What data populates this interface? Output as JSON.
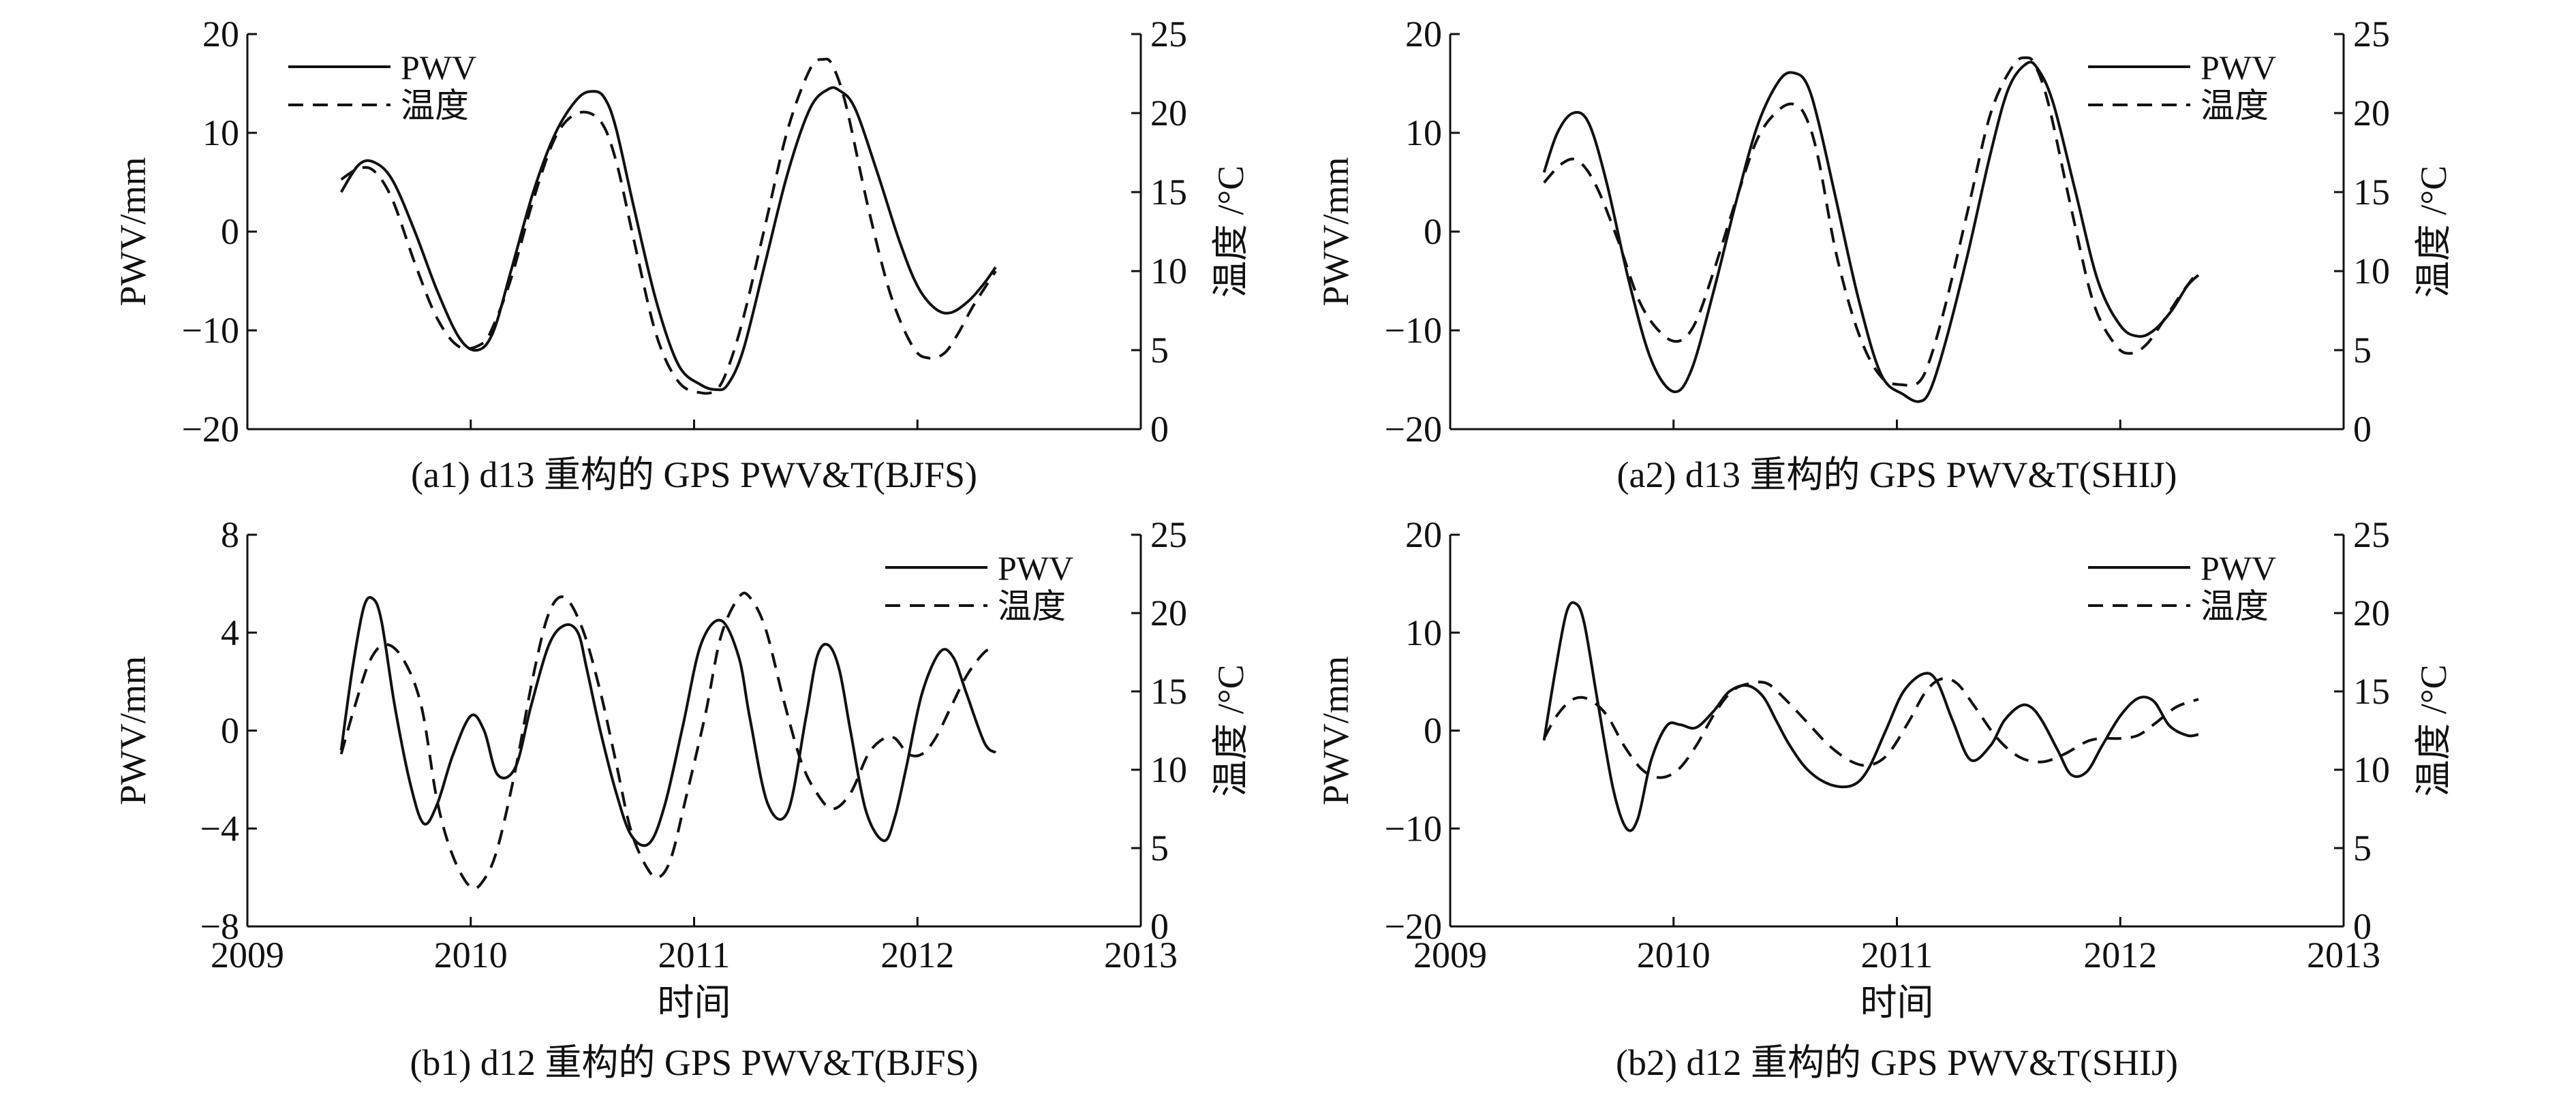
{
  "x_axis_title": "时间",
  "chart_data": [
    {
      "id": "a1",
      "type": "line",
      "caption": "(a1) d13 重构的 GPS PWV&T(BJFS)",
      "ylabel": "PWV/mm",
      "y2label": "温度 /°C",
      "xlim": [
        2009,
        2013
      ],
      "ylim": [
        -20,
        20
      ],
      "y2lim": [
        0,
        25
      ],
      "xticks": [
        "2009",
        "2010",
        "2011",
        "2012",
        "2013"
      ],
      "yticks": [
        "−20",
        "−10",
        "0",
        "10",
        "20"
      ],
      "y2ticks": [
        "0",
        "5",
        "10",
        "15",
        "20",
        "25"
      ],
      "show_x_tick_labels": false,
      "show_x_title": false,
      "legend_position": "top-left",
      "series": [
        {
          "name": "PWV",
          "axis": "left",
          "style": "solid",
          "x": [
            2009.42,
            2009.5,
            2009.57,
            2009.65,
            2009.75,
            2009.85,
            2009.95,
            2010.03,
            2010.1,
            2010.18,
            2010.28,
            2010.38,
            2010.48,
            2010.55,
            2010.6,
            2010.65,
            2010.73,
            2010.83,
            2010.93,
            2011.03,
            2011.1,
            2011.15,
            2011.22,
            2011.32,
            2011.42,
            2011.52,
            2011.6,
            2011.65,
            2011.72,
            2011.82,
            2011.92,
            2012.0,
            2012.08,
            2012.15,
            2012.23,
            2012.3,
            2012.35
          ],
          "values": [
            4,
            6.8,
            7,
            5.2,
            0,
            -6,
            -10.8,
            -12,
            -10.2,
            -4,
            4,
            10,
            13.5,
            14.2,
            13.5,
            10.5,
            2.5,
            -7,
            -13.5,
            -15.5,
            -16,
            -15.5,
            -12,
            -3,
            6,
            12.5,
            14.4,
            14.3,
            12.5,
            6,
            -1,
            -5.5,
            -7.8,
            -8.2,
            -7,
            -5.2,
            -3.6
          ]
        },
        {
          "name": "温度",
          "axis": "right",
          "style": "dashed",
          "x": [
            2009.42,
            2009.5,
            2009.57,
            2009.65,
            2009.75,
            2009.85,
            2009.95,
            2010.05,
            2010.1,
            2010.18,
            2010.28,
            2010.38,
            2010.48,
            2010.58,
            2010.65,
            2010.73,
            2010.83,
            2010.93,
            2011.03,
            2011.1,
            2011.15,
            2011.22,
            2011.32,
            2011.42,
            2011.52,
            2011.58,
            2011.62,
            2011.68,
            2011.78,
            2011.88,
            2011.98,
            2012.05,
            2012.12,
            2012.18,
            2012.25,
            2012.35
          ],
          "values": [
            15.8,
            16.5,
            16.3,
            14.5,
            10.5,
            7,
            5.2,
            5.4,
            6.5,
            9.5,
            14.5,
            18.5,
            20,
            19.5,
            17,
            12,
            6,
            3,
            2.3,
            2.5,
            3.8,
            7,
            13,
            19,
            22.8,
            23.4,
            23,
            20.5,
            14,
            8.5,
            5.2,
            4.5,
            4.8,
            6,
            7.8,
            10
          ]
        }
      ]
    },
    {
      "id": "a2",
      "type": "line",
      "caption": "(a2) d13 重构的 GPS PWV&T(SHIJ)",
      "ylabel": "PWV/mm",
      "y2label": "温度 /°C",
      "xlim": [
        2009,
        2013
      ],
      "ylim": [
        -20,
        20
      ],
      "y2lim": [
        0,
        25
      ],
      "xticks": [
        "2009",
        "2010",
        "2011",
        "2012",
        "2013"
      ],
      "yticks": [
        "−20",
        "−10",
        "0",
        "10",
        "20"
      ],
      "y2ticks": [
        "0",
        "5",
        "10",
        "15",
        "20",
        "25"
      ],
      "show_x_tick_labels": false,
      "show_x_title": false,
      "legend_position": "top-right",
      "series": [
        {
          "name": "PWV",
          "axis": "left",
          "style": "solid",
          "x": [
            2009.42,
            2009.48,
            2009.55,
            2009.62,
            2009.7,
            2009.8,
            2009.9,
            2010.0,
            2010.08,
            2010.18,
            2010.28,
            2010.38,
            2010.48,
            2010.55,
            2010.6,
            2010.65,
            2010.73,
            2010.83,
            2010.93,
            2011.03,
            2011.1,
            2011.15,
            2011.22,
            2011.32,
            2011.42,
            2011.5,
            2011.58,
            2011.63,
            2011.7,
            2011.8,
            2011.9,
            2012.0,
            2012.08,
            2012.15,
            2012.23,
            2012.3,
            2012.35
          ],
          "values": [
            6,
            10,
            12,
            11,
            5,
            -5,
            -13,
            -16.2,
            -14,
            -6,
            3,
            11,
            15.5,
            16,
            14.8,
            11,
            3,
            -7,
            -14.5,
            -16.5,
            -17.2,
            -16,
            -11,
            -2,
            8,
            14.5,
            17,
            16.5,
            13,
            4,
            -5,
            -9.5,
            -10.6,
            -10,
            -8,
            -5.5,
            -4.4
          ]
        },
        {
          "name": "温度",
          "axis": "right",
          "style": "dashed",
          "x": [
            2009.42,
            2009.5,
            2009.57,
            2009.65,
            2009.75,
            2009.85,
            2009.95,
            2010.03,
            2010.1,
            2010.18,
            2010.28,
            2010.38,
            2010.48,
            2010.55,
            2010.6,
            2010.65,
            2010.73,
            2010.83,
            2010.93,
            2011.03,
            2011.1,
            2011.15,
            2011.22,
            2011.32,
            2011.42,
            2011.52,
            2011.58,
            2011.62,
            2011.68,
            2011.78,
            2011.88,
            2011.98,
            2012.05,
            2012.12,
            2012.2,
            2012.28,
            2012.35
          ],
          "values": [
            15.6,
            16.8,
            17,
            15.5,
            12,
            8,
            6,
            5.6,
            6.8,
            10,
            14.5,
            18.5,
            20.3,
            20.5,
            19.5,
            17,
            11,
            6,
            3.3,
            2.8,
            3,
            4.5,
            8,
            14,
            20,
            23,
            23.5,
            23,
            20.5,
            14,
            8,
            5.3,
            4.8,
            5.4,
            7,
            8.7,
            10
          ]
        }
      ]
    },
    {
      "id": "b1",
      "type": "line",
      "caption": "(b1) d12 重构的 GPS PWV&T(BJFS)",
      "ylabel": "PWV/mm",
      "y2label": "温度 /°C",
      "xlabel": "时间",
      "xlim": [
        2009,
        2013
      ],
      "ylim": [
        -8,
        8
      ],
      "y2lim": [
        0,
        25
      ],
      "xticks": [
        "2009",
        "2010",
        "2011",
        "2012",
        "2013"
      ],
      "yticks": [
        "−8",
        "−4",
        "0",
        "4",
        "8"
      ],
      "y2ticks": [
        "0",
        "5",
        "10",
        "15",
        "20",
        "25"
      ],
      "show_x_tick_labels": true,
      "show_x_title": true,
      "legend_position": "top-right",
      "series": [
        {
          "name": "PWV",
          "axis": "left",
          "style": "solid",
          "x": [
            2009.42,
            2009.47,
            2009.52,
            2009.56,
            2009.6,
            2009.66,
            2009.73,
            2009.79,
            2009.85,
            2009.92,
            2010.0,
            2010.06,
            2010.12,
            2010.2,
            2010.27,
            2010.35,
            2010.42,
            2010.48,
            2010.52,
            2010.58,
            2010.65,
            2010.72,
            2010.8,
            2010.87,
            2010.95,
            2011.03,
            2011.12,
            2011.2,
            2011.25,
            2011.33,
            2011.42,
            2011.5,
            2011.55,
            2011.6,
            2011.65,
            2011.7,
            2011.77,
            2011.85,
            2011.9,
            2011.95,
            2012.02,
            2012.1,
            2012.16,
            2012.22,
            2012.3,
            2012.35
          ],
          "values": [
            -0.8,
            2.5,
            5,
            5.4,
            4.5,
            1,
            -2.2,
            -3.8,
            -3,
            -1,
            0.6,
            0,
            -1.8,
            -1.5,
            1,
            3.5,
            4.3,
            4,
            2.5,
            0,
            -2.5,
            -4.3,
            -4.6,
            -3,
            0.2,
            3.5,
            4.5,
            3,
            0.5,
            -3,
            -3.3,
            0.5,
            3,
            3.5,
            2.5,
            0,
            -3.3,
            -4.5,
            -3.5,
            -1.5,
            1.5,
            3.2,
            3,
            1.5,
            -0.5,
            -0.9
          ]
        },
        {
          "name": "温度",
          "axis": "right",
          "style": "dashed",
          "x": [
            2009.42,
            2009.48,
            2009.55,
            2009.62,
            2009.7,
            2009.78,
            2009.85,
            2009.92,
            2010.0,
            2010.06,
            2010.12,
            2010.2,
            2010.28,
            2010.35,
            2010.42,
            2010.5,
            2010.58,
            2010.65,
            2010.72,
            2010.8,
            2010.85,
            2010.9,
            2010.96,
            2011.05,
            2011.12,
            2011.2,
            2011.25,
            2011.32,
            2011.4,
            2011.48,
            2011.55,
            2011.62,
            2011.7,
            2011.78,
            2011.85,
            2011.9,
            2011.96,
            2012.02,
            2012.08,
            2012.15,
            2012.22,
            2012.3,
            2012.35
          ],
          "values": [
            11,
            14,
            17,
            18,
            17,
            14,
            8,
            4.5,
            2.5,
            3,
            5,
            10,
            16,
            20,
            21,
            19,
            15,
            10.5,
            6,
            3.5,
            3.2,
            4.5,
            8,
            13.5,
            18.5,
            21,
            21,
            19,
            14.5,
            10.5,
            8.5,
            7.5,
            8.5,
            11,
            12,
            12,
            11,
            11,
            12,
            14,
            16,
            17.5,
            17.8
          ]
        }
      ]
    },
    {
      "id": "b2",
      "type": "line",
      "caption": "(b2) d12 重构的 GPS PWV&T(SHIJ)",
      "ylabel": "PWV/mm",
      "y2label": "温度 /°C",
      "xlabel": "时间",
      "xlim": [
        2009,
        2013
      ],
      "ylim": [
        -20,
        20
      ],
      "y2lim": [
        0,
        25
      ],
      "xticks": [
        "2009",
        "2010",
        "2011",
        "2012",
        "2013"
      ],
      "yticks": [
        "−20",
        "−10",
        "0",
        "10",
        "20"
      ],
      "y2ticks": [
        "0",
        "5",
        "10",
        "15",
        "20",
        "25"
      ],
      "show_x_tick_labels": true,
      "show_x_title": true,
      "legend_position": "top-right",
      "series": [
        {
          "name": "PWV",
          "axis": "left",
          "style": "solid",
          "x": [
            2009.42,
            2009.47,
            2009.52,
            2009.56,
            2009.6,
            2009.66,
            2009.73,
            2009.79,
            2009.84,
            2009.9,
            2009.97,
            2010.03,
            2010.1,
            2010.18,
            2010.25,
            2010.33,
            2010.4,
            2010.46,
            2010.52,
            2010.6,
            2010.7,
            2010.8,
            2010.87,
            2010.95,
            2011.03,
            2011.12,
            2011.18,
            2011.25,
            2011.33,
            2011.42,
            2011.48,
            2011.55,
            2011.6,
            2011.65,
            2011.72,
            2011.78,
            2011.85,
            2011.92,
            2012.0,
            2012.08,
            2012.15,
            2012.22,
            2012.3,
            2012.35
          ],
          "values": [
            -1,
            6,
            12,
            13,
            11,
            3,
            -6,
            -10,
            -9,
            -3,
            0.5,
            0.6,
            0.3,
            2,
            4,
            4.6,
            3.5,
            1,
            -1.5,
            -4,
            -5.5,
            -5.6,
            -4,
            0,
            4,
            5.8,
            5,
            1,
            -3,
            -1.5,
            1,
            2.5,
            2.4,
            1,
            -2,
            -4.5,
            -4.2,
            -1.5,
            1.5,
            3.3,
            3,
            0.5,
            -0.5,
            -0.4
          ]
        },
        {
          "name": "温度",
          "axis": "right",
          "style": "dashed",
          "x": [
            2009.42,
            2009.48,
            2009.55,
            2009.62,
            2009.7,
            2009.78,
            2009.86,
            2009.94,
            2010.02,
            2010.1,
            2010.18,
            2010.26,
            2010.34,
            2010.42,
            2010.5,
            2010.6,
            2010.7,
            2010.8,
            2010.88,
            2010.96,
            2011.05,
            2011.13,
            2011.2,
            2011.27,
            2011.35,
            2011.45,
            2011.55,
            2011.65,
            2011.75,
            2011.85,
            2011.92,
            2012.0,
            2012.08,
            2012.16,
            2012.25,
            2012.35
          ],
          "values": [
            12,
            13.5,
            14.5,
            14.5,
            13.5,
            11.5,
            10,
            9.5,
            10,
            11.5,
            13.5,
            15,
            15.5,
            15.5,
            14.5,
            13,
            11.5,
            10.5,
            10.3,
            11,
            13,
            15,
            15.8,
            15.5,
            14,
            12,
            10.8,
            10.5,
            11,
            11.8,
            12,
            12,
            12.2,
            13,
            14,
            14.5
          ]
        }
      ]
    }
  ]
}
